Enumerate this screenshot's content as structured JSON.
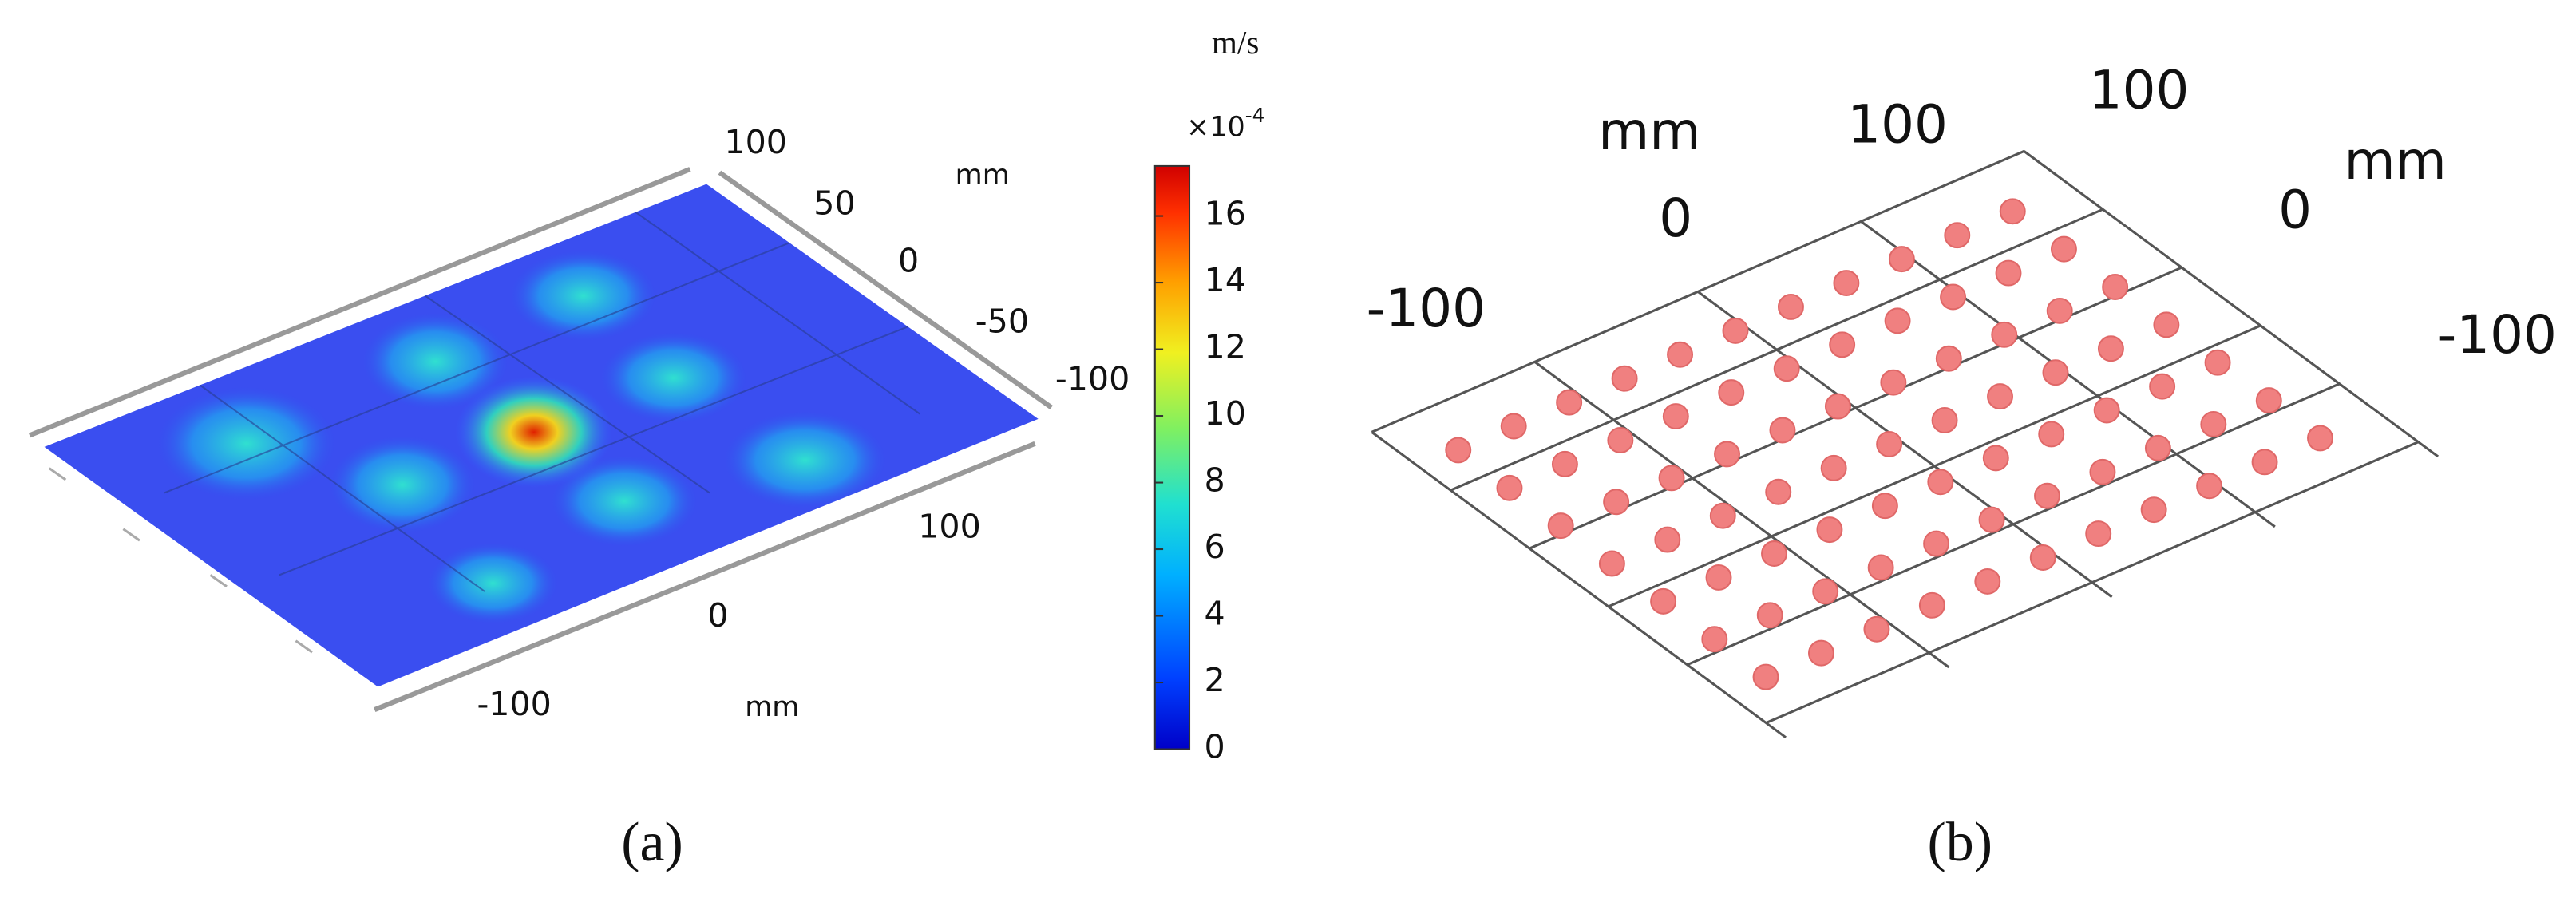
{
  "panel_a": {
    "label": "(a)",
    "unit": "m/s",
    "colorbar": {
      "multiplier": "×10",
      "exponent": "-4",
      "range": [
        0,
        17.5
      ],
      "ticks": [
        0,
        2,
        4,
        6,
        8,
        10,
        12,
        14,
        16
      ]
    },
    "x_axis": {
      "unit": "mm",
      "ticks": [
        100,
        0,
        -100
      ]
    },
    "y_axis": {
      "unit": "mm",
      "ticks": [
        100,
        50,
        0,
        -50,
        -100
      ]
    }
  },
  "panel_b": {
    "label": "(b)",
    "left_axis": {
      "unit": "mm",
      "ticks": [
        -100,
        0,
        100
      ]
    },
    "right_axis": {
      "unit": "mm",
      "ticks": [
        100,
        0,
        -100
      ]
    }
  }
}
